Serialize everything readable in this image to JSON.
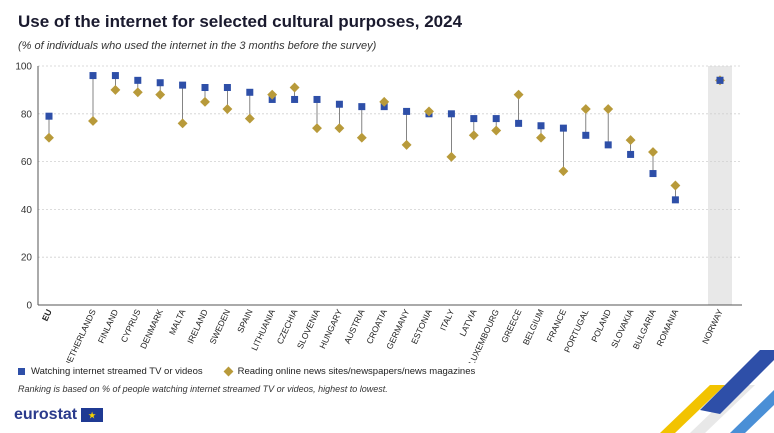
{
  "header": {
    "title": "Use of the internet for selected cultural purposes, 2024",
    "subtitle": "(% of individuals who used the internet in the 3 months before the survey)"
  },
  "colors": {
    "series1": "#2e4fa8",
    "series2": "#b89a3a",
    "highlight_band": "#e8e8e8",
    "gridline": "#d0d0d0"
  },
  "chart_data": {
    "type": "scatter",
    "categories": [
      "EU",
      "NETHERLANDS",
      "FINLAND",
      "CYPRUS",
      "DENMARK",
      "MALTA",
      "IRELAND",
      "SWEDEN",
      "SPAIN",
      "LITHUANIA",
      "CZECHIA",
      "SLOVENIA",
      "HUNGARY",
      "AUSTRIA",
      "CROATIA",
      "GERMANY",
      "ESTONIA",
      "ITALY",
      "LATVIA",
      "LUXEMBOURG",
      "GREECE",
      "BELGIUM",
      "FRANCE",
      "PORTUGAL",
      "POLAND",
      "SLOVAKIA",
      "BULGARIA",
      "ROMANIA",
      "NORWAY"
    ],
    "series": [
      {
        "name": "Watching internet streamed TV or videos",
        "marker": "square",
        "values": [
          79,
          96,
          96,
          94,
          93,
          92,
          91,
          91,
          89,
          86,
          86,
          86,
          84,
          83,
          83,
          81,
          80,
          80,
          78,
          78,
          76,
          75,
          74,
          71,
          67,
          63,
          55,
          44,
          94
        ]
      },
      {
        "name": "Reading online news sites/newspapers/news magazines",
        "marker": "diamond",
        "values": [
          70,
          77,
          90,
          89,
          88,
          76,
          85,
          82,
          78,
          88,
          91,
          74,
          74,
          70,
          85,
          67,
          81,
          62,
          71,
          73,
          88,
          70,
          56,
          82,
          82,
          69,
          64,
          50,
          94
        ]
      }
    ],
    "yticks": [
      0,
      20,
      40,
      60,
      80,
      100
    ],
    "ylim": [
      0,
      100
    ],
    "grid": true,
    "highlighted_categories": [
      "NORWAY"
    ],
    "legend_position": "bottom-left"
  },
  "footer": {
    "note": "Ranking is based on % of people watching internet streamed TV or videos, highest to lowest.",
    "logo_text": "eurostat"
  }
}
